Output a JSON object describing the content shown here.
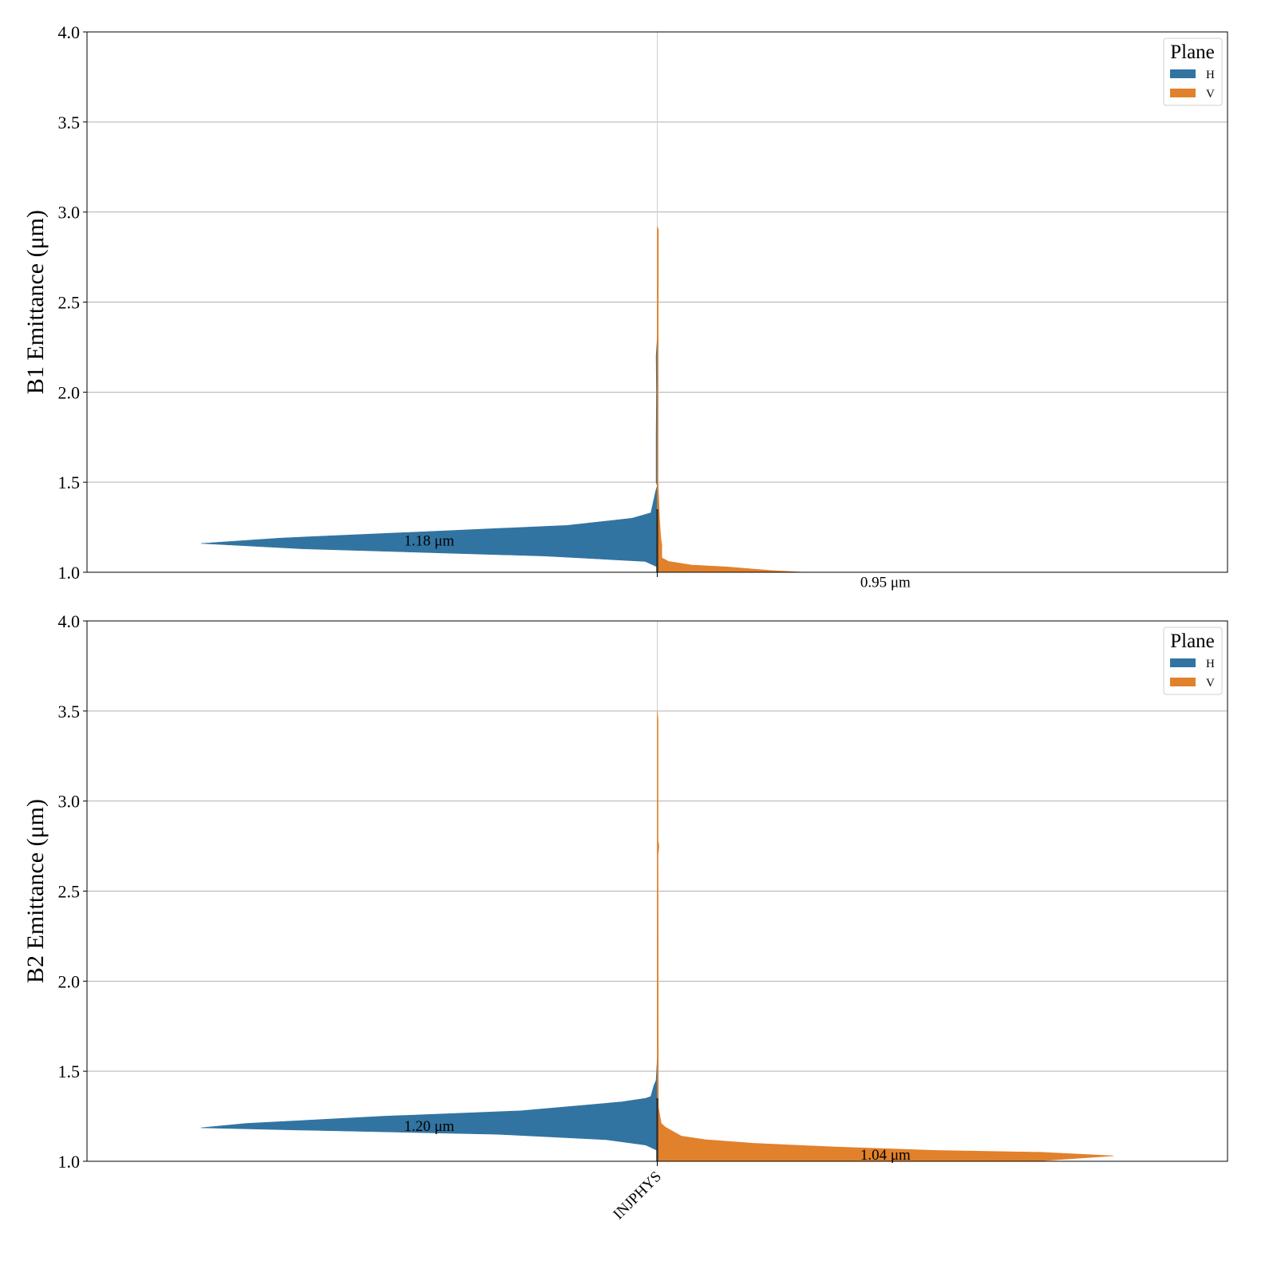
{
  "chart_data": [
    {
      "type": "violin",
      "split": true,
      "ylabel": "B1 Emittance (μm)",
      "ylim": [
        1.0,
        4.0
      ],
      "yticks": [
        "1.0",
        "1.5",
        "2.0",
        "2.5",
        "3.0",
        "3.5",
        "4.0"
      ],
      "categories": [
        "INJPHYS"
      ],
      "show_xticklabels": false,
      "grid": true,
      "legend": {
        "title": "Plane",
        "placement": "top-right",
        "entries": [
          "H",
          "V"
        ]
      },
      "series": [
        {
          "name": "H",
          "side": "left",
          "color": "#3274a1",
          "profile": [
            [
              2.3,
              0
            ],
            [
              2.2,
              0.001
            ],
            [
              2.0,
              0.0007
            ],
            [
              1.75,
              0.001
            ],
            [
              1.5,
              0.001
            ],
            [
              1.48,
              0
            ],
            [
              1.45,
              0.0014
            ],
            [
              1.33,
              0.0056
            ],
            [
              1.3,
              0.022
            ],
            [
              1.26,
              0.079
            ],
            [
              1.19,
              0.33
            ],
            [
              1.16,
              0.4
            ],
            [
              1.13,
              0.31
            ],
            [
              1.09,
              0.098
            ],
            [
              1.06,
              0.0105
            ],
            [
              1.03,
              0
            ]
          ],
          "median_label": "1.18 μm",
          "median": 1.18
        },
        {
          "name": "V",
          "side": "right",
          "color": "#e1812c",
          "profile": [
            [
              2.92,
              0
            ],
            [
              2.9,
              0.001
            ],
            [
              1.5,
              0.0007
            ],
            [
              1.3,
              0.002
            ],
            [
              1.2,
              0.003
            ],
            [
              1.15,
              0.004
            ],
            [
              1.08,
              0.004
            ],
            [
              1.06,
              0.01
            ],
            [
              1.04,
              0.03
            ],
            [
              1.03,
              0.06
            ],
            [
              1.01,
              0.1
            ],
            [
              1.0,
              0.13
            ],
            [
              0.98,
              0.2
            ],
            [
              0.95,
              0.3
            ],
            [
              0.9,
              0.2
            ]
          ],
          "median_label": "0.95 μm",
          "median": 0.95
        }
      ]
    },
    {
      "type": "violin",
      "split": true,
      "ylabel": "B2 Emittance (μm)",
      "ylim": [
        1.0,
        4.0
      ],
      "yticks": [
        "1.0",
        "1.5",
        "2.0",
        "2.5",
        "3.0",
        "3.5",
        "4.0"
      ],
      "categories": [
        "INJPHYS"
      ],
      "show_xticklabels": true,
      "grid": true,
      "legend": {
        "title": "Plane",
        "placement": "top-right",
        "entries": [
          "H",
          "V"
        ]
      },
      "series": [
        {
          "name": "H",
          "side": "left",
          "color": "#3274a1",
          "profile": [
            [
              1.57,
              0
            ],
            [
              1.45,
              0.001
            ],
            [
              1.42,
              0.003
            ],
            [
              1.36,
              0.0056
            ],
            [
              1.35,
              0.01
            ],
            [
              1.33,
              0.031
            ],
            [
              1.31,
              0.066
            ],
            [
              1.28,
              0.12
            ],
            [
              1.25,
              0.24
            ],
            [
              1.21,
              0.36
            ],
            [
              1.186,
              0.4
            ],
            [
              1.17,
              0.29
            ],
            [
              1.15,
              0.14
            ],
            [
              1.12,
              0.045
            ],
            [
              1.09,
              0.01
            ],
            [
              1.06,
              0
            ]
          ],
          "median_label": "1.20 μm",
          "median": 1.2
        },
        {
          "name": "V",
          "side": "right",
          "color": "#e1812c",
          "profile": [
            [
              3.5,
              0
            ],
            [
              3.45,
              0.0007
            ],
            [
              2.78,
              0.0007
            ],
            [
              2.75,
              0.0015
            ],
            [
              2.7,
              0.0007
            ],
            [
              1.3,
              0.001
            ],
            [
              1.21,
              0.0035
            ],
            [
              1.19,
              0.007
            ],
            [
              1.14,
              0.021
            ],
            [
              1.12,
              0.042
            ],
            [
              1.1,
              0.084
            ],
            [
              1.08,
              0.154
            ],
            [
              1.06,
              0.245
            ],
            [
              1.05,
              0.336
            ],
            [
              1.03,
              0.4
            ],
            [
              1.0,
              0.33
            ],
            [
              0.98,
              0.2
            ]
          ],
          "median_label": "1.04 μm",
          "median": 1.04
        }
      ]
    }
  ]
}
